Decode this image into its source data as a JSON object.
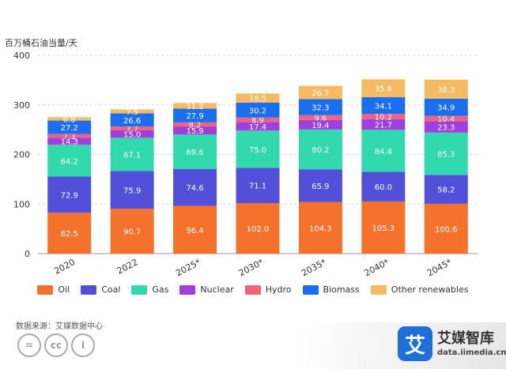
{
  "chart": {
    "y_unit_label": "百万桶石油当量/天",
    "source": "数据来源：艾媒数据中心"
  },
  "brand": {
    "name": "艾媒智库",
    "url": "data.iimedia.cn",
    "logo_text": "艾"
  },
  "license_icons": [
    "=",
    "cc",
    "i"
  ],
  "chart_data": {
    "type": "bar",
    "stacked": true,
    "categories": [
      "2020",
      "2022",
      "2025*",
      "2030*",
      "2035*",
      "2040*",
      "2045*"
    ],
    "series": [
      {
        "name": "Oil",
        "color": "#f4722b",
        "values": [
          82.5,
          90.7,
          96.4,
          102.0,
          104.3,
          105.3,
          100.6
        ]
      },
      {
        "name": "Coal",
        "color": "#5250d9",
        "values": [
          72.9,
          75.9,
          74.6,
          71.1,
          65.9,
          60.0,
          58.2
        ]
      },
      {
        "name": "Gas",
        "color": "#32d9ac",
        "values": [
          64.2,
          67.1,
          69.6,
          75.0,
          80.2,
          84.4,
          85.3
        ]
      },
      {
        "name": "Nuclear",
        "color": "#9f3fe0",
        "values": [
          14.3,
          15.0,
          15.9,
          17.4,
          19.4,
          21.7,
          23.3
        ]
      },
      {
        "name": "Hydro",
        "color": "#f0637a",
        "values": [
          7.3,
          7.7,
          8.2,
          8.9,
          9.6,
          10.2,
          10.4
        ]
      },
      {
        "name": "Biomass",
        "color": "#1b6ef0",
        "values": [
          27.2,
          26.6,
          27.9,
          30.2,
          32.3,
          34.1,
          34.9
        ]
      },
      {
        "name": "Other renewables",
        "color": "#f6bb62",
        "values": [
          6.8,
          7.9,
          11.2,
          18.5,
          26.7,
          35.8,
          38.3
        ]
      }
    ],
    "ylim": [
      0,
      400
    ],
    "yticks": [
      0,
      100,
      200,
      300,
      400
    ],
    "grid": true,
    "legend_position": "bottom"
  }
}
